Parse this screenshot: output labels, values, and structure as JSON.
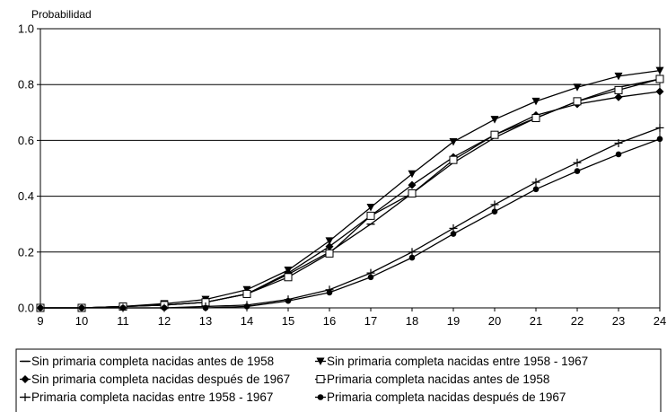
{
  "chart_data": {
    "type": "line",
    "title": "",
    "ylabel": "Probabilidad",
    "xlabel": "",
    "x": [
      9,
      10,
      11,
      12,
      13,
      14,
      15,
      16,
      17,
      18,
      19,
      20,
      21,
      22,
      23,
      24
    ],
    "xlim": [
      9,
      24
    ],
    "ylim": [
      0,
      1.0
    ],
    "x_ticks": [
      "9",
      "10",
      "11",
      "12",
      "13",
      "14",
      "15",
      "16",
      "17",
      "18",
      "19",
      "20",
      "21",
      "22",
      "23",
      "24"
    ],
    "y_ticks": [
      "0.0",
      "0.2",
      "0.4",
      "0.6",
      "0.8",
      "1.0"
    ],
    "grid": "horizontal",
    "legend_position": "bottom",
    "series": [
      {
        "name": "Sin primaria completa nacidas antes de 1958",
        "marker": "dash",
        "values": [
          0.0,
          0.0,
          0.005,
          0.01,
          0.02,
          0.05,
          0.12,
          0.2,
          0.3,
          0.41,
          0.52,
          0.61,
          0.68,
          0.74,
          0.79,
          0.82
        ]
      },
      {
        "name": "Sin primaria completa nacidas entre 1958 - 1967",
        "marker": "triangle-down",
        "values": [
          0.0,
          0.0,
          0.005,
          0.015,
          0.03,
          0.065,
          0.135,
          0.24,
          0.36,
          0.48,
          0.595,
          0.675,
          0.74,
          0.79,
          0.83,
          0.85
        ]
      },
      {
        "name": "Sin primaria completa nacidas después de 1967",
        "marker": "diamond",
        "values": [
          0.0,
          0.0,
          0.005,
          0.01,
          0.02,
          0.05,
          0.125,
          0.22,
          0.33,
          0.44,
          0.54,
          0.62,
          0.69,
          0.73,
          0.755,
          0.775
        ]
      },
      {
        "name": "Primaria completa nacidas antes de 1958",
        "marker": "square-open",
        "values": [
          0.0,
          0.0,
          0.005,
          0.01,
          0.02,
          0.05,
          0.11,
          0.195,
          0.33,
          0.41,
          0.53,
          0.62,
          0.68,
          0.74,
          0.78,
          0.82
        ]
      },
      {
        "name": "Primaria completa nacidas entre 1958 - 1967",
        "marker": "cross",
        "values": [
          0.0,
          0.0,
          0.0,
          0.0,
          0.005,
          0.01,
          0.03,
          0.065,
          0.125,
          0.2,
          0.285,
          0.37,
          0.45,
          0.52,
          0.59,
          0.645
        ]
      },
      {
        "name": "Primaria completa nacidas después de 1967",
        "marker": "circle",
        "values": [
          0.0,
          0.0,
          0.0,
          0.0,
          0.0,
          0.005,
          0.025,
          0.055,
          0.11,
          0.18,
          0.265,
          0.345,
          0.425,
          0.49,
          0.55,
          0.605
        ]
      }
    ]
  }
}
